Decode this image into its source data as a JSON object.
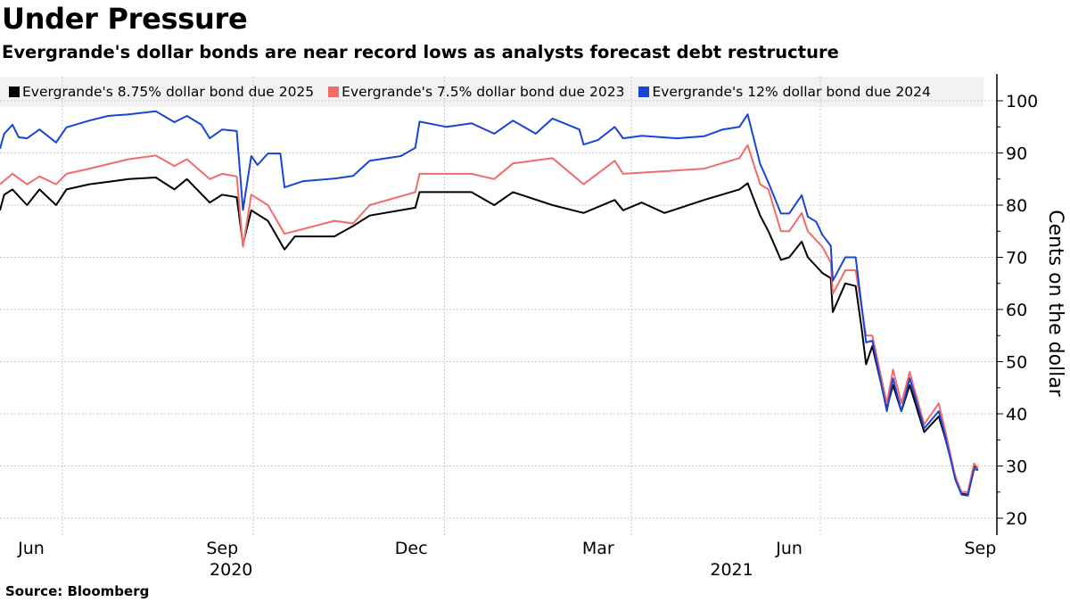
{
  "title": "Under Pressure",
  "subtitle": "Evergrande's dollar bonds are near record lows as analysts forecast debt restructure",
  "source": "Source: Bloomberg",
  "chart_data": {
    "type": "line",
    "title": "Under Pressure",
    "xlabel": "",
    "ylabel": "Cents on the dollar",
    "x_unit": "days since 2020-06-01",
    "xlim": [
      0,
      480
    ],
    "ylim": [
      18,
      104
    ],
    "yticks": [
      20,
      30,
      40,
      50,
      60,
      70,
      80,
      90,
      100
    ],
    "x_gridlines": [
      30,
      122,
      214,
      304,
      395
    ],
    "xticks": [
      {
        "day": 15,
        "label": "Jun"
      },
      {
        "day": 107,
        "label": "Sep"
      },
      {
        "day": 198,
        "label": "Dec"
      },
      {
        "day": 288,
        "label": "Mar"
      },
      {
        "day": 380,
        "label": "Jun"
      },
      {
        "day": 472,
        "label": "Sep"
      }
    ],
    "year_labels": [
      {
        "day": 107,
        "label": "2020"
      },
      {
        "day": 348,
        "label": "2021"
      }
    ],
    "grid": true,
    "legend_position": "top",
    "series": [
      {
        "name": "Evergrande's 8.75% dollar bond due 2025",
        "color": "#000000",
        "points": [
          [
            0,
            79
          ],
          [
            2,
            82
          ],
          [
            6,
            83
          ],
          [
            13,
            80
          ],
          [
            19,
            83
          ],
          [
            27,
            80
          ],
          [
            32,
            83
          ],
          [
            43,
            84
          ],
          [
            62,
            85
          ],
          [
            75,
            85.3
          ],
          [
            84,
            83
          ],
          [
            90,
            85
          ],
          [
            101,
            80.5
          ],
          [
            107,
            82
          ],
          [
            114,
            81.5
          ],
          [
            117,
            72.5
          ],
          [
            121,
            79
          ],
          [
            129,
            77
          ],
          [
            137,
            71.5
          ],
          [
            142,
            74
          ],
          [
            161,
            74
          ],
          [
            170,
            76
          ],
          [
            178,
            78
          ],
          [
            200,
            79.5
          ],
          [
            202,
            82.5
          ],
          [
            227,
            82.5
          ],
          [
            238,
            80
          ],
          [
            247,
            82.5
          ],
          [
            266,
            80
          ],
          [
            281,
            78.5
          ],
          [
            296,
            81
          ],
          [
            300,
            79
          ],
          [
            309,
            80.5
          ],
          [
            320,
            78.5
          ],
          [
            339,
            81
          ],
          [
            356,
            83
          ],
          [
            360,
            84.2
          ],
          [
            366,
            78
          ],
          [
            370,
            75
          ],
          [
            376,
            69.5
          ],
          [
            380,
            70
          ],
          [
            386,
            73
          ],
          [
            389,
            70
          ],
          [
            396,
            67
          ],
          [
            400,
            66
          ],
          [
            401,
            59.5
          ],
          [
            407,
            65
          ],
          [
            412,
            64.5
          ],
          [
            415,
            56
          ],
          [
            417,
            49.5
          ],
          [
            420,
            53
          ],
          [
            427,
            41
          ],
          [
            430,
            45.5
          ],
          [
            434,
            40.5
          ],
          [
            438,
            45.5
          ],
          [
            445,
            36.5
          ],
          [
            452,
            39.5
          ],
          [
            455,
            35.5
          ],
          [
            460,
            28
          ],
          [
            463,
            24.7
          ],
          [
            466,
            24.5
          ],
          [
            469,
            30
          ],
          [
            471,
            29.5
          ]
        ]
      },
      {
        "name": "Evergrande's 7.5% dollar bond due 2023",
        "color": "#f26b6b",
        "points": [
          [
            0,
            84
          ],
          [
            6,
            86
          ],
          [
            13,
            84
          ],
          [
            19,
            85.5
          ],
          [
            27,
            84
          ],
          [
            32,
            86
          ],
          [
            43,
            87
          ],
          [
            62,
            88.8
          ],
          [
            75,
            89.5
          ],
          [
            84,
            87.5
          ],
          [
            90,
            88.8
          ],
          [
            101,
            85
          ],
          [
            107,
            86
          ],
          [
            114,
            85.5
          ],
          [
            117,
            72
          ],
          [
            121,
            82
          ],
          [
            129,
            80
          ],
          [
            137,
            74.5
          ],
          [
            161,
            77
          ],
          [
            170,
            76.5
          ],
          [
            178,
            80
          ],
          [
            200,
            82.5
          ],
          [
            202,
            86
          ],
          [
            227,
            86
          ],
          [
            238,
            85
          ],
          [
            247,
            88
          ],
          [
            266,
            89
          ],
          [
            281,
            84
          ],
          [
            296,
            88.5
          ],
          [
            300,
            86
          ],
          [
            320,
            86.5
          ],
          [
            339,
            87
          ],
          [
            356,
            89
          ],
          [
            360,
            91.5
          ],
          [
            366,
            84
          ],
          [
            370,
            83
          ],
          [
            376,
            75
          ],
          [
            380,
            75
          ],
          [
            386,
            78.5
          ],
          [
            389,
            75
          ],
          [
            396,
            72
          ],
          [
            400,
            69
          ],
          [
            401,
            63
          ],
          [
            407,
            67.5
          ],
          [
            412,
            67.5
          ],
          [
            415,
            60
          ],
          [
            417,
            55
          ],
          [
            420,
            55
          ],
          [
            427,
            42
          ],
          [
            430,
            48.5
          ],
          [
            434,
            42
          ],
          [
            438,
            48
          ],
          [
            445,
            38
          ],
          [
            452,
            42
          ],
          [
            455,
            37
          ],
          [
            460,
            28
          ],
          [
            463,
            25
          ],
          [
            466,
            25
          ],
          [
            469,
            30.5
          ],
          [
            471,
            29.5
          ]
        ]
      },
      {
        "name": "Evergrande's 12% dollar bond due 2024",
        "color": "#1a44d4",
        "points": [
          [
            0,
            90.8
          ],
          [
            2,
            93.7
          ],
          [
            6,
            95.4
          ],
          [
            9,
            93
          ],
          [
            13,
            92.8
          ],
          [
            19,
            94.5
          ],
          [
            27,
            92
          ],
          [
            32,
            94.9
          ],
          [
            43,
            96.2
          ],
          [
            52,
            97.1
          ],
          [
            62,
            97.4
          ],
          [
            75,
            98
          ],
          [
            84,
            95.9
          ],
          [
            90,
            97.1
          ],
          [
            97,
            95.4
          ],
          [
            101,
            92.8
          ],
          [
            107,
            94.5
          ],
          [
            114,
            94.2
          ],
          [
            117,
            79.1
          ],
          [
            121,
            89.4
          ],
          [
            124,
            87.7
          ],
          [
            129,
            89.9
          ],
          [
            135,
            89.9
          ],
          [
            137,
            83.4
          ],
          [
            146,
            84.6
          ],
          [
            161,
            85.1
          ],
          [
            170,
            85.6
          ],
          [
            178,
            88.5
          ],
          [
            193,
            89.4
          ],
          [
            200,
            91
          ],
          [
            202,
            96
          ],
          [
            215,
            95
          ],
          [
            227,
            95.7
          ],
          [
            238,
            93.7
          ],
          [
            247,
            96.2
          ],
          [
            258,
            93.7
          ],
          [
            266,
            96.6
          ],
          [
            279,
            94.5
          ],
          [
            281,
            91.6
          ],
          [
            288,
            92.5
          ],
          [
            296,
            95
          ],
          [
            300,
            92.8
          ],
          [
            309,
            93.3
          ],
          [
            326,
            92.8
          ],
          [
            339,
            93.2
          ],
          [
            348,
            94.5
          ],
          [
            356,
            95
          ],
          [
            360,
            97.4
          ],
          [
            366,
            87.9
          ],
          [
            370,
            84.3
          ],
          [
            376,
            78.4
          ],
          [
            380,
            78.4
          ],
          [
            386,
            81.9
          ],
          [
            389,
            77.8
          ],
          [
            393,
            76.8
          ],
          [
            396,
            74.3
          ],
          [
            400,
            72.2
          ],
          [
            401,
            65.5
          ],
          [
            407,
            70
          ],
          [
            412,
            70
          ],
          [
            415,
            60.3
          ],
          [
            417,
            53.7
          ],
          [
            420,
            54
          ],
          [
            427,
            40.5
          ],
          [
            430,
            46.8
          ],
          [
            434,
            40.5
          ],
          [
            438,
            46.8
          ],
          [
            445,
            37.2
          ],
          [
            452,
            40.5
          ],
          [
            455,
            35.9
          ],
          [
            460,
            27.4
          ],
          [
            463,
            24.5
          ],
          [
            466,
            24.3
          ],
          [
            469,
            29.4
          ],
          [
            471,
            29.2
          ]
        ]
      }
    ]
  }
}
